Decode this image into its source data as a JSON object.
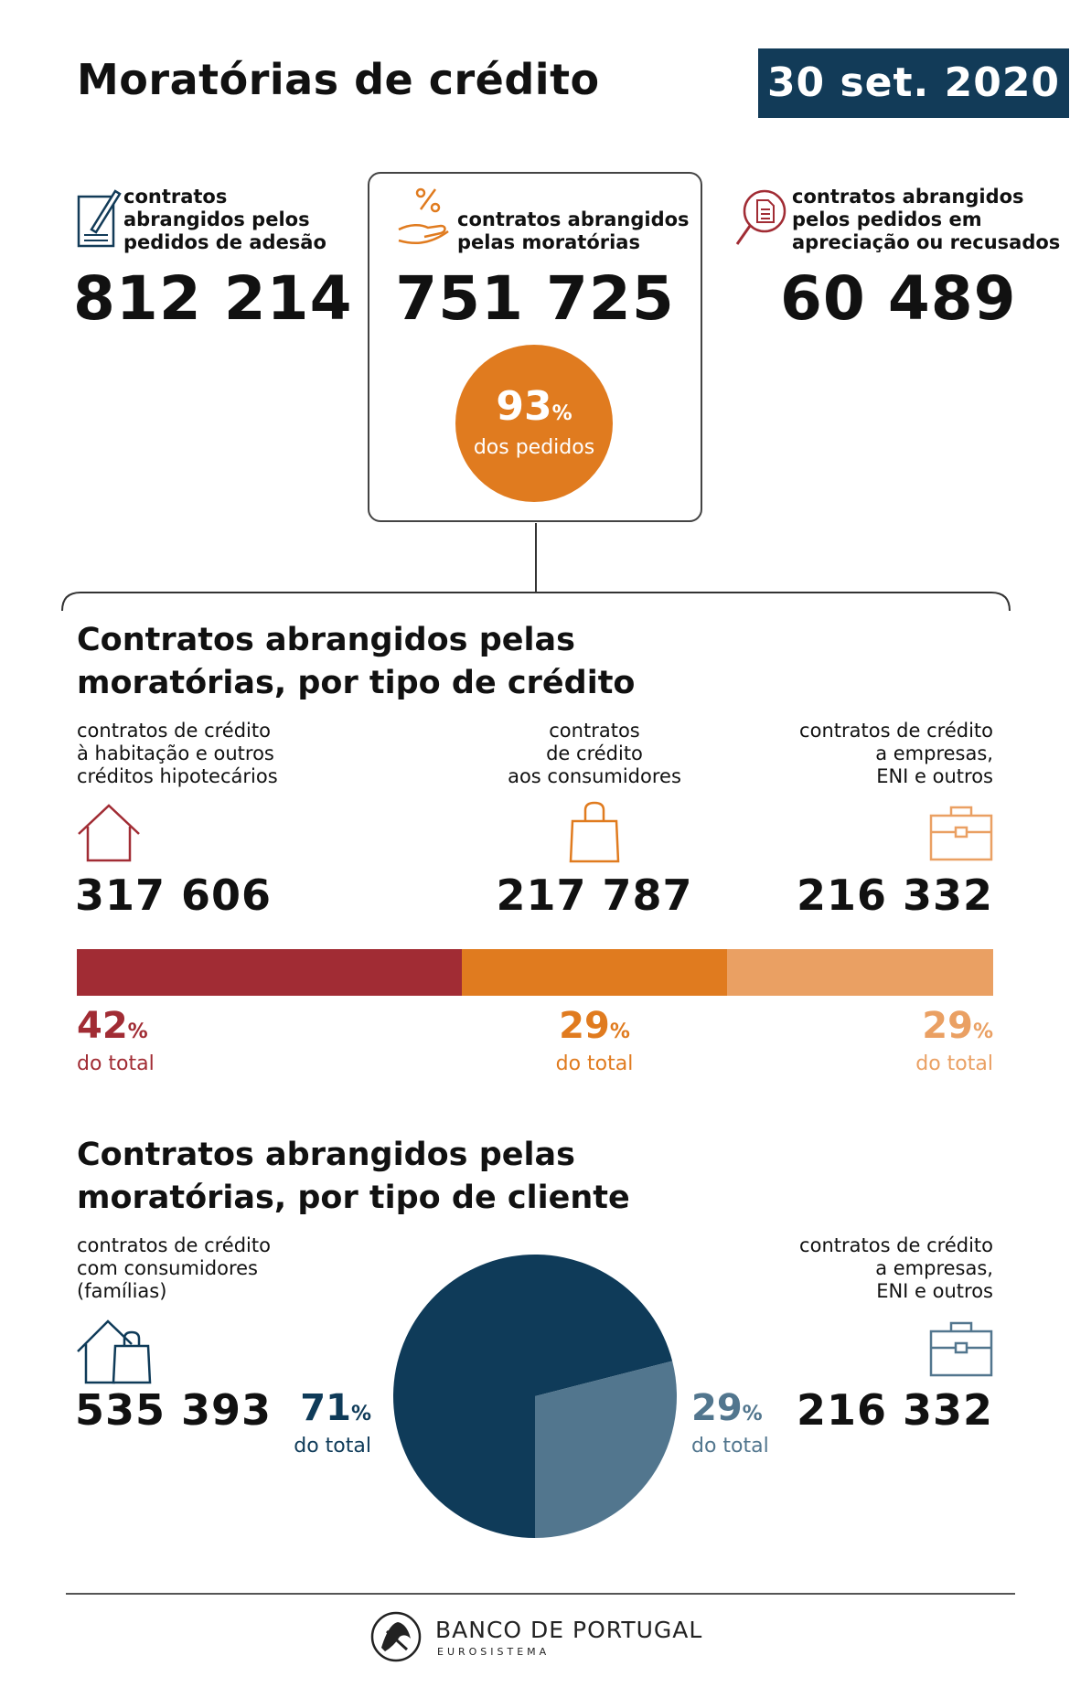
{
  "header": {
    "title": "Moratórias de crédito",
    "date": "30 set. 2020"
  },
  "top_stats": [
    {
      "label_lines": [
        "contratos",
        "abrangidos pelos",
        "pedidos de adesão"
      ],
      "value": "812 214",
      "icon": "document-pen-icon"
    },
    {
      "label_lines": [
        "contratos abrangidos",
        "pelas moratórias"
      ],
      "value": "751 725",
      "icon": "hand-percent-icon",
      "share_value": "93",
      "share_unit": "%",
      "share_label": "dos pedidos",
      "share_fraction": 0.93
    },
    {
      "label_lines": [
        "contratos abrangidos",
        "pelos pedidos em",
        "apreciação ou recusados"
      ],
      "value": "60 489",
      "icon": "magnifier-document-icon"
    }
  ],
  "credit_type": {
    "title_lines": [
      "Contratos abrangidos pelas",
      "moratórias, por tipo de crédito"
    ],
    "items": [
      {
        "label_lines": [
          "contratos de crédito",
          "à habitação e outros",
          "créditos hipotecários"
        ],
        "value": "317 606",
        "icon": "house-icon",
        "pct": 42,
        "pct_unit": "%",
        "pct_label": "do total",
        "color": "#a12c34"
      },
      {
        "label_lines": [
          "contratos",
          "de crédito",
          "aos consumidores"
        ],
        "value": "217 787",
        "icon": "shopping-bag-icon",
        "pct": 29,
        "pct_unit": "%",
        "pct_label": "do total",
        "color": "#e07b1f"
      },
      {
        "label_lines": [
          "contratos de crédito",
          "a empresas,",
          "ENI e outros"
        ],
        "value": "216 332",
        "icon": "briefcase-icon",
        "pct": 29,
        "pct_unit": "%",
        "pct_label": "do total",
        "color": "#eaa063"
      }
    ]
  },
  "client_type": {
    "title_lines": [
      "Contratos abrangidos pelas",
      "moratórias, por tipo de cliente"
    ],
    "items": [
      {
        "label_lines": [
          "contratos de crédito",
          "com consumidores",
          "(famílias)"
        ],
        "value": "535 393",
        "icon": "house-bag-icon",
        "pct": 71,
        "pct_unit": "%",
        "pct_label": "do total",
        "color": "#0f3b59"
      },
      {
        "label_lines": [
          "contratos de crédito",
          "a empresas,",
          "ENI e outros"
        ],
        "value": "216 332",
        "icon": "briefcase-icon",
        "pct": 29,
        "pct_unit": "%",
        "pct_label": "do total",
        "color": "#52768e"
      }
    ]
  },
  "chart_data": [
    {
      "type": "bar",
      "orientation": "horizontal-stacked",
      "categories": [
        "contratos de crédito à habitação e outros créditos hipotecários",
        "contratos de crédito aos consumidores",
        "contratos de crédito a empresas, ENI e outros"
      ],
      "values": [
        42,
        29,
        29
      ],
      "counts": [
        317606,
        217787,
        216332
      ]
    },
    {
      "type": "pie",
      "categories": [
        "contratos de crédito com consumidores (famílias)",
        "contratos de crédito a empresas, ENI e outros"
      ],
      "values": [
        71,
        29
      ],
      "counts": [
        535393,
        216332
      ]
    }
  ],
  "footer": {
    "brand_line1": "BANCO DE PORTUGAL",
    "brand_line2": "EUROSISTEMA",
    "logo_icon": "banco-de-portugal-logo-icon"
  }
}
